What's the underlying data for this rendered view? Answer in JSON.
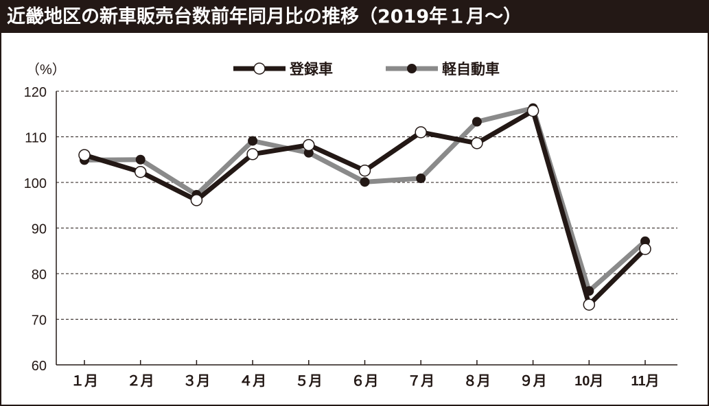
{
  "title": "近畿地区の新車販売台数前年同月比の推移（2019年１月～）",
  "chart_data": {
    "type": "line",
    "title": "近畿地区の新車販売台数前年同月比の推移（2019年１月～）",
    "ylabel": "（%）",
    "xlabel": "",
    "categories": [
      "１月",
      "２月",
      "３月",
      "４月",
      "５月",
      "６月",
      "７月",
      "８月",
      "９月",
      "10月",
      "11月"
    ],
    "yticks": [
      "60",
      "70",
      "80",
      "90",
      "100",
      "110",
      "120"
    ],
    "ylim": [
      60,
      120
    ],
    "grid": true,
    "legend_position": "top-center",
    "series": [
      {
        "name": "登録車",
        "color": "#231815",
        "marker": "hollow-circle",
        "values": [
          106.0,
          102.3,
          96.1,
          106.2,
          108.2,
          102.6,
          111.0,
          108.6,
          115.7,
          73.2,
          85.4
        ]
      },
      {
        "name": "軽自動車",
        "color": "#8a8a8a",
        "marker": "filled-circle",
        "values": [
          104.9,
          105.0,
          97.3,
          109.1,
          106.5,
          100.1,
          100.9,
          113.3,
          116.3,
          76.2,
          87.1
        ]
      }
    ]
  }
}
